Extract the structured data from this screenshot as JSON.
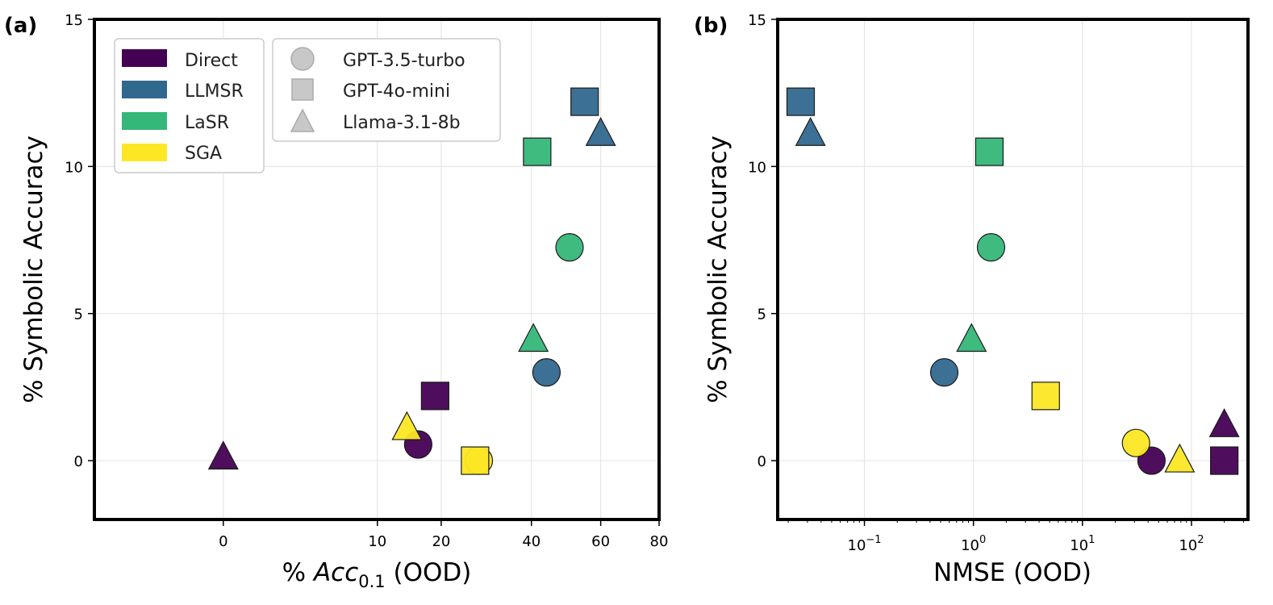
{
  "chart_data": [
    {
      "type": "scatter",
      "panel_label": "(a)",
      "xlabel_prefix": "% ",
      "xlabel_var": "Acc",
      "xlabel_sub": "0.1",
      "xlabel_suffix": " (OOD)",
      "ylabel": "% Symbolic Accuracy",
      "x_scale": "sqrt",
      "xlim": [
        -7,
        80
      ],
      "ylim": [
        -2,
        15
      ],
      "xticks": [
        0,
        10,
        20,
        40,
        60,
        80
      ],
      "xtick_labels": [
        "0",
        "10",
        "20",
        "40",
        "60",
        "80"
      ],
      "yticks": [
        0,
        5,
        10,
        15
      ],
      "ytick_labels": [
        "0",
        "5",
        "10",
        "15"
      ],
      "grid": true,
      "points": [
        {
          "method": "Direct",
          "model": "GPT-3.5-turbo",
          "x": 16,
          "y": 0.55
        },
        {
          "method": "Direct",
          "model": "GPT-4o-mini",
          "x": 18.9,
          "y": 2.2
        },
        {
          "method": "Direct",
          "model": "Llama-3.1-8b",
          "x": 0,
          "y": 0.1
        },
        {
          "method": "LLMSR",
          "model": "GPT-3.5-turbo",
          "x": 44,
          "y": 3.0
        },
        {
          "method": "LLMSR",
          "model": "GPT-4o-mini",
          "x": 55,
          "y": 12.2
        },
        {
          "method": "LLMSR",
          "model": "Llama-3.1-8b",
          "x": 60,
          "y": 11.1
        },
        {
          "method": "LaSR",
          "model": "GPT-3.5-turbo",
          "x": 50.5,
          "y": 7.25
        },
        {
          "method": "LaSR",
          "model": "GPT-4o-mini",
          "x": 41.5,
          "y": 10.5
        },
        {
          "method": "LaSR",
          "model": "Llama-3.1-8b",
          "x": 40.5,
          "y": 4.1
        },
        {
          "method": "SGA",
          "model": "GPT-3.5-turbo",
          "x": 27.5,
          "y": 0.0
        },
        {
          "method": "SGA",
          "model": "GPT-4o-mini",
          "x": 26.7,
          "y": 0.0
        },
        {
          "method": "SGA",
          "model": "Llama-3.1-8b",
          "x": 14.2,
          "y": 1.1
        }
      ]
    },
    {
      "type": "scatter",
      "panel_label": "(b)",
      "xlabel": "NMSE (OOD)",
      "ylabel": "% Symbolic Accuracy",
      "x_scale": "log",
      "xlim": [
        0.016,
        330
      ],
      "ylim": [
        -2,
        15
      ],
      "xticks": [
        0.1,
        1,
        10,
        100
      ],
      "xtick_bases": [
        "10",
        "10",
        "10",
        "10"
      ],
      "xtick_exps": [
        "−1",
        "0",
        "1",
        "2"
      ],
      "yticks": [
        0,
        5,
        10,
        15
      ],
      "ytick_labels": [
        "0",
        "5",
        "10",
        "15"
      ],
      "grid": true,
      "points": [
        {
          "method": "Direct",
          "model": "GPT-3.5-turbo",
          "x": 43,
          "y": 0.0
        },
        {
          "method": "Direct",
          "model": "GPT-4o-mini",
          "x": 200,
          "y": 0.0
        },
        {
          "method": "Direct",
          "model": "Llama-3.1-8b",
          "x": 200,
          "y": 1.2
        },
        {
          "method": "LLMSR",
          "model": "GPT-3.5-turbo",
          "x": 0.54,
          "y": 3.0
        },
        {
          "method": "LLMSR",
          "model": "GPT-4o-mini",
          "x": 0.026,
          "y": 12.2
        },
        {
          "method": "LLMSR",
          "model": "Llama-3.1-8b",
          "x": 0.032,
          "y": 11.1
        },
        {
          "method": "LaSR",
          "model": "GPT-3.5-turbo",
          "x": 1.45,
          "y": 7.25
        },
        {
          "method": "LaSR",
          "model": "GPT-4o-mini",
          "x": 1.4,
          "y": 10.5
        },
        {
          "method": "LaSR",
          "model": "Llama-3.1-8b",
          "x": 0.96,
          "y": 4.1
        },
        {
          "method": "SGA",
          "model": "GPT-3.5-turbo",
          "x": 31,
          "y": 0.6
        },
        {
          "method": "SGA",
          "model": "GPT-4o-mini",
          "x": 4.6,
          "y": 2.2
        },
        {
          "method": "SGA",
          "model": "Llama-3.1-8b",
          "x": 78,
          "y": 0.0
        }
      ]
    }
  ],
  "legend": {
    "methods": [
      {
        "name": "Direct",
        "color": "#440154"
      },
      {
        "name": "LLMSR",
        "color": "#31688e"
      },
      {
        "name": "LaSR",
        "color": "#35b779"
      },
      {
        "name": "SGA",
        "color": "#fde725"
      }
    ],
    "models": [
      {
        "name": "GPT-3.5-turbo",
        "marker": "circle"
      },
      {
        "name": "GPT-4o-mini",
        "marker": "square"
      },
      {
        "name": "Llama-3.1-8b",
        "marker": "triangle"
      }
    ],
    "placement": "top-left"
  }
}
